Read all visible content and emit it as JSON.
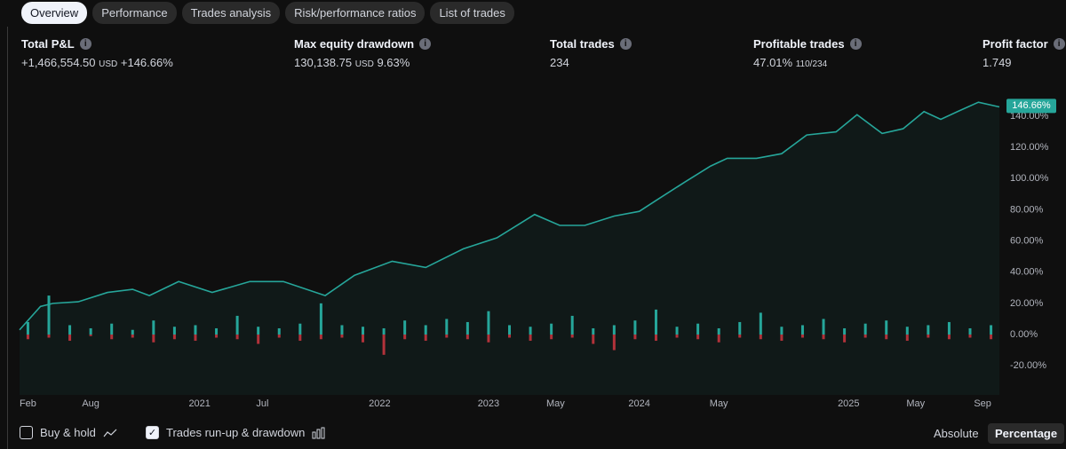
{
  "tabs": [
    "Overview",
    "Performance",
    "Trades analysis",
    "Risk/performance ratios",
    "List of trades"
  ],
  "metrics": [
    {
      "label": "Total P&L",
      "value": "+1,466,554.50",
      "unit": "USD",
      "extra": "+146.66%"
    },
    {
      "label": "Max equity drawdown",
      "value": "130,138.75",
      "unit": "USD",
      "extra": "9.63%"
    },
    {
      "label": "Total trades",
      "value": "234"
    },
    {
      "label": "Profitable trades",
      "value": "47.01%",
      "extra": "110/234"
    },
    {
      "label": "Profit factor",
      "value": "1.749"
    }
  ],
  "chart_data": {
    "type": "line",
    "xlim": [
      0,
      234
    ],
    "xticks": [
      {
        "value": 2,
        "label": "Feb"
      },
      {
        "value": 17,
        "label": "Aug"
      },
      {
        "value": 43,
        "label": "2021"
      },
      {
        "value": 58,
        "label": "Jul"
      },
      {
        "value": 86,
        "label": "2022"
      },
      {
        "value": 112,
        "label": "2023"
      },
      {
        "value": 128,
        "label": "May"
      },
      {
        "value": 148,
        "label": "2024"
      },
      {
        "value": 167,
        "label": "May"
      },
      {
        "value": 198,
        "label": "2025"
      },
      {
        "value": 214,
        "label": "May"
      },
      {
        "value": 230,
        "label": "Sep"
      }
    ],
    "ylim": [
      -38.7,
      160.5
    ],
    "yticks": [
      {
        "value": -20,
        "label": "-20.00%"
      },
      {
        "value": 0,
        "label": "0.00%"
      },
      {
        "value": 20,
        "label": "20.00%"
      },
      {
        "value": 40,
        "label": "40.00%"
      },
      {
        "value": 60,
        "label": "60.00%"
      },
      {
        "value": 80,
        "label": "80.00%"
      },
      {
        "value": 100,
        "label": "100.00%"
      },
      {
        "value": 120,
        "label": "120.00%"
      },
      {
        "value": 140,
        "label": "140.00%"
      }
    ],
    "grid": false,
    "equity": {
      "color": "#26a69a",
      "x": [
        0,
        5,
        8,
        14,
        21,
        27,
        31,
        38,
        46,
        55,
        63,
        73,
        80,
        89,
        97,
        106,
        114,
        123,
        129,
        135,
        142,
        148,
        152,
        159,
        165,
        169,
        176,
        182,
        188,
        195,
        200,
        206,
        211,
        216,
        220,
        224,
        229,
        234
      ],
      "values": [
        3,
        18,
        20,
        21,
        27,
        29,
        25,
        34,
        27,
        34,
        34,
        25,
        38,
        47,
        43,
        55,
        62,
        77,
        70,
        70,
        76,
        79,
        86,
        98,
        108,
        113,
        113,
        116,
        128,
        130,
        141,
        129,
        132,
        143,
        138,
        143,
        149,
        146
      ]
    },
    "current": {
      "value": 146.66,
      "label": "146.66%"
    },
    "runup": {
      "color": "#26a69a",
      "x": [
        2,
        7,
        12,
        17,
        22,
        27,
        32,
        37,
        42,
        47,
        52,
        57,
        62,
        67,
        72,
        77,
        82,
        87,
        92,
        97,
        102,
        107,
        112,
        117,
        122,
        127,
        132,
        137,
        142,
        147,
        152,
        157,
        162,
        167,
        172,
        177,
        182,
        187,
        192,
        197,
        202,
        207,
        212,
        217,
        222,
        227,
        232
      ],
      "values": [
        8,
        25,
        6,
        4,
        7,
        3,
        9,
        5,
        6,
        4,
        12,
        5,
        4,
        7,
        20,
        6,
        5,
        4,
        9,
        6,
        10,
        8,
        15,
        6,
        5,
        7,
        12,
        4,
        6,
        9,
        16,
        5,
        7,
        4,
        8,
        14,
        5,
        6,
        10,
        4,
        7,
        9,
        5,
        6,
        8,
        4,
        6
      ]
    },
    "drawdown": {
      "color": "#b2323a",
      "x": [
        2,
        7,
        12,
        17,
        22,
        27,
        32,
        37,
        42,
        47,
        52,
        57,
        62,
        67,
        72,
        77,
        82,
        87,
        92,
        97,
        102,
        107,
        112,
        117,
        122,
        127,
        132,
        137,
        142,
        147,
        152,
        157,
        162,
        167,
        172,
        177,
        182,
        187,
        192,
        197,
        202,
        207,
        212,
        217,
        222,
        227,
        232
      ],
      "values": [
        -3,
        -2,
        -4,
        -1,
        -3,
        -2,
        -5,
        -3,
        -4,
        -2,
        -3,
        -6,
        -2,
        -4,
        -3,
        -2,
        -5,
        -13,
        -3,
        -4,
        -2,
        -3,
        -5,
        -2,
        -4,
        -3,
        -2,
        -6,
        -10,
        -3,
        -4,
        -2,
        -3,
        -5,
        -2,
        -3,
        -4,
        -2,
        -3,
        -5,
        -2,
        -3,
        -4,
        -2,
        -3,
        -2,
        -3
      ]
    }
  },
  "footer": {
    "buy_hold": "Buy & hold",
    "runup_drawdown": "Trades run-up & drawdown",
    "absolute": "Absolute",
    "percentage": "Percentage"
  }
}
